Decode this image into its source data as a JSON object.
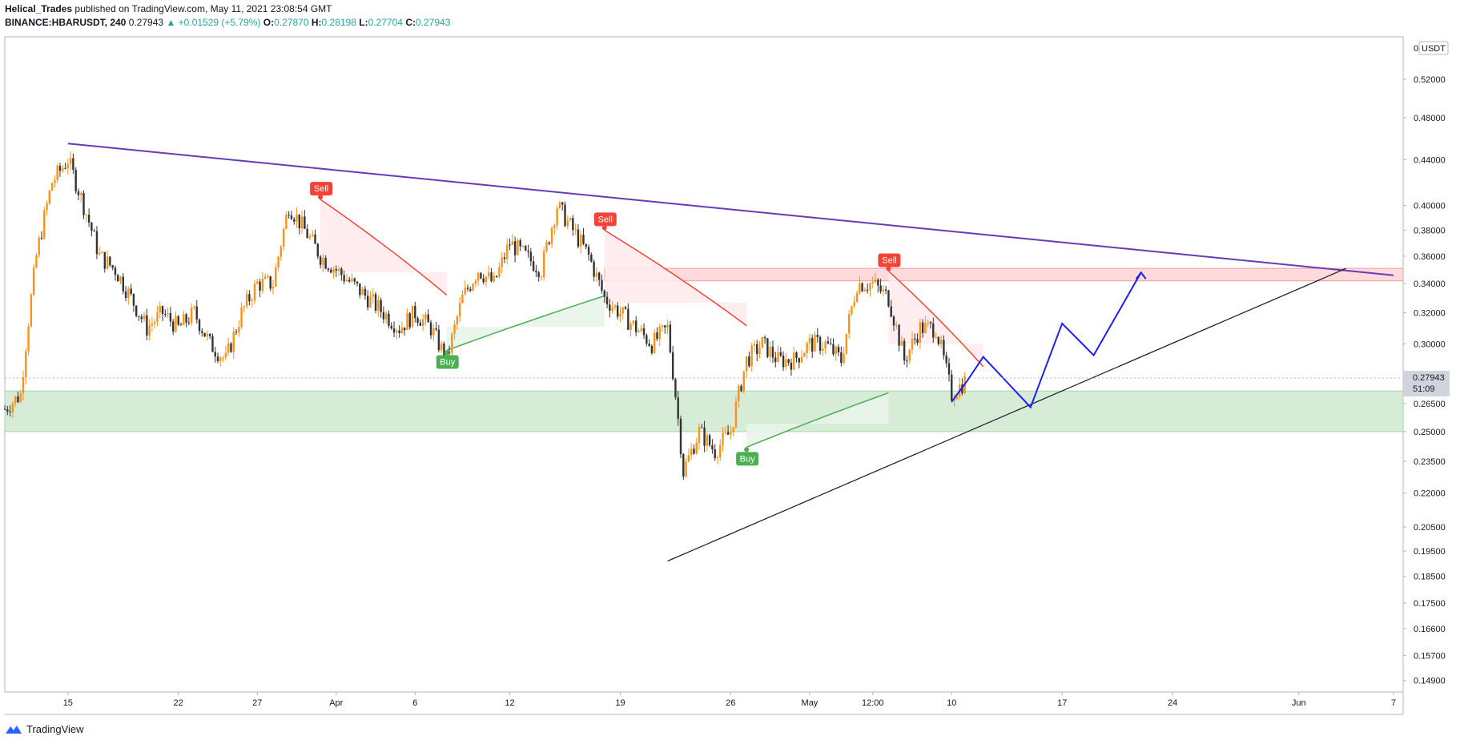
{
  "header": {
    "author": "Helical_Trades",
    "published": "published on TradingView.com, May 11, 2021 23:08:54 GMT",
    "symbol": "BINANCE:HBARUSDT, 240",
    "last": "0.27943",
    "arrow": "▲",
    "change": "+0.01529 (+5.79%)",
    "o_label": "O:",
    "o_value": "0.27870",
    "h_label": "H:",
    "h_value": "0.28198",
    "l_label": "L:",
    "l_value": "0.27704",
    "c_label": "C:",
    "c_value": "0.27943"
  },
  "footer": {
    "brand": "TradingView",
    "logo_icon": "tradingview-logo-icon"
  },
  "colors": {
    "bull": "#f7931a",
    "bear": "#333333",
    "supertrend_up": "#4caf50",
    "supertrend_down": "#f44336",
    "fill_up": "#e8f5e9",
    "fill_down": "#ffebee",
    "trend": "#673ab7",
    "projection": "#1e1ef0",
    "support_zone": "#c8e6c9",
    "resistance_zone": "#ffcdd2"
  },
  "chart_data": {
    "type": "candlestick",
    "price_axis": {
      "currency": "USDT",
      "top_label": "0",
      "scale": "log",
      "range": [
        0.1455,
        0.568
      ],
      "ticks": [
        "0.52000",
        "0.48000",
        "0.44000",
        "0.40000",
        "0.38000",
        "0.36000",
        "0.34000",
        "0.32000",
        "0.30000",
        "0.26500",
        "0.25000",
        "0.23500",
        "0.22000",
        "0.20500",
        "0.19500",
        "0.18500",
        "0.17500",
        "0.16600",
        "0.15700",
        "0.14900"
      ],
      "last_price": "0.27943",
      "countdown": "51:09"
    },
    "time_axis": {
      "range": [
        "2021-03-11",
        "2021-06-07"
      ],
      "ticks": [
        {
          "label": "15",
          "date": "2021-03-15"
        },
        {
          "label": "22",
          "date": "2021-03-22"
        },
        {
          "label": "27",
          "date": "2021-03-27"
        },
        {
          "label": "Apr",
          "date": "2021-04-01"
        },
        {
          "label": "6",
          "date": "2021-04-06"
        },
        {
          "label": "12",
          "date": "2021-04-12"
        },
        {
          "label": "19",
          "date": "2021-04-19"
        },
        {
          "label": "26",
          "date": "2021-04-26"
        },
        {
          "label": "May",
          "date": "2021-05-01"
        },
        {
          "label": "12:00",
          "date": "2021-05-05"
        },
        {
          "label": "10",
          "date": "2021-05-10"
        },
        {
          "label": "17",
          "date": "2021-05-17"
        },
        {
          "label": "24",
          "date": "2021-05-24"
        },
        {
          "label": "Jun",
          "date": "2021-06-01"
        },
        {
          "label": "7",
          "date": "2021-06-07"
        }
      ]
    },
    "price_path": [
      [
        "2021-03-11",
        0.262
      ],
      [
        "2021-03-12",
        0.27
      ],
      [
        "2021-03-13",
        0.36
      ],
      [
        "2021-03-14",
        0.42
      ],
      [
        "2021-03-15",
        0.44
      ],
      [
        "2021-03-16",
        0.4
      ],
      [
        "2021-03-17",
        0.36
      ],
      [
        "2021-03-18",
        0.35
      ],
      [
        "2021-03-19",
        0.33
      ],
      [
        "2021-03-20",
        0.31
      ],
      [
        "2021-03-21",
        0.32
      ],
      [
        "2021-03-22",
        0.31
      ],
      [
        "2021-03-23",
        0.32
      ],
      [
        "2021-03-24",
        0.3
      ],
      [
        "2021-03-25",
        0.29
      ],
      [
        "2021-03-26",
        0.32
      ],
      [
        "2021-03-27",
        0.34
      ],
      [
        "2021-03-28",
        0.34
      ],
      [
        "2021-03-29",
        0.4
      ],
      [
        "2021-03-30",
        0.38
      ],
      [
        "2021-03-31",
        0.36
      ],
      [
        "2021-04-01",
        0.35
      ],
      [
        "2021-04-02",
        0.34
      ],
      [
        "2021-04-03",
        0.33
      ],
      [
        "2021-04-04",
        0.32
      ],
      [
        "2021-04-05",
        0.31
      ],
      [
        "2021-04-06",
        0.32
      ],
      [
        "2021-04-07",
        0.31
      ],
      [
        "2021-04-08",
        0.29
      ],
      [
        "2021-04-09",
        0.33
      ],
      [
        "2021-04-10",
        0.35
      ],
      [
        "2021-04-11",
        0.34
      ],
      [
        "2021-04-12",
        0.37
      ],
      [
        "2021-04-13",
        0.36
      ],
      [
        "2021-04-14",
        0.35
      ],
      [
        "2021-04-15",
        0.4
      ],
      [
        "2021-04-16",
        0.38
      ],
      [
        "2021-04-17",
        0.36
      ],
      [
        "2021-04-18",
        0.33
      ],
      [
        "2021-04-19",
        0.32
      ],
      [
        "2021-04-20",
        0.31
      ],
      [
        "2021-04-21",
        0.3
      ],
      [
        "2021-04-22",
        0.31
      ],
      [
        "2021-04-23",
        0.23
      ],
      [
        "2021-04-24",
        0.25
      ],
      [
        "2021-04-25",
        0.24
      ],
      [
        "2021-04-26",
        0.25
      ],
      [
        "2021-04-27",
        0.29
      ],
      [
        "2021-04-28",
        0.3
      ],
      [
        "2021-04-29",
        0.29
      ],
      [
        "2021-04-30",
        0.29
      ],
      [
        "2021-05-01",
        0.3
      ],
      [
        "2021-05-02",
        0.3
      ],
      [
        "2021-05-03",
        0.29
      ],
      [
        "2021-05-04",
        0.34
      ],
      [
        "2021-05-05",
        0.34
      ],
      [
        "2021-05-06",
        0.33
      ],
      [
        "2021-05-07",
        0.29
      ],
      [
        "2021-05-08",
        0.31
      ],
      [
        "2021-05-09",
        0.31
      ],
      [
        "2021-05-10",
        0.27
      ],
      [
        "2021-05-11",
        0.279
      ]
    ],
    "supertrend": [
      {
        "signal": "Sell",
        "date": "2021-03-31",
        "price": 0.405
      },
      {
        "signal": "Buy",
        "date": "2021-04-08",
        "price": 0.296
      },
      {
        "signal": "Sell",
        "date": "2021-04-18",
        "price": 0.38
      },
      {
        "signal": "Buy",
        "date": "2021-04-27",
        "price": 0.242
      },
      {
        "signal": "Sell",
        "date": "2021-05-06",
        "price": 0.349
      }
    ],
    "zones": [
      {
        "name": "resistance",
        "from": 0.342,
        "to": 0.351
      },
      {
        "name": "support",
        "from": 0.25,
        "to": 0.272
      }
    ],
    "trendlines": [
      {
        "name": "descending-resistance",
        "from": [
          "2021-03-15",
          0.455
        ],
        "to": [
          "2021-06-07",
          0.346
        ]
      },
      {
        "name": "ascending-support",
        "from": [
          "2021-04-22",
          0.191
        ],
        "to": [
          "2021-06-04",
          0.351
        ]
      }
    ],
    "projection": [
      [
        "2021-05-10",
        0.266
      ],
      [
        "2021-05-11",
        0.278
      ],
      [
        "2021-05-12",
        0.292
      ],
      [
        "2021-05-15",
        0.263
      ],
      [
        "2021-05-17",
        0.313
      ],
      [
        "2021-05-19",
        0.293
      ],
      [
        "2021-05-22",
        0.348
      ]
    ]
  }
}
